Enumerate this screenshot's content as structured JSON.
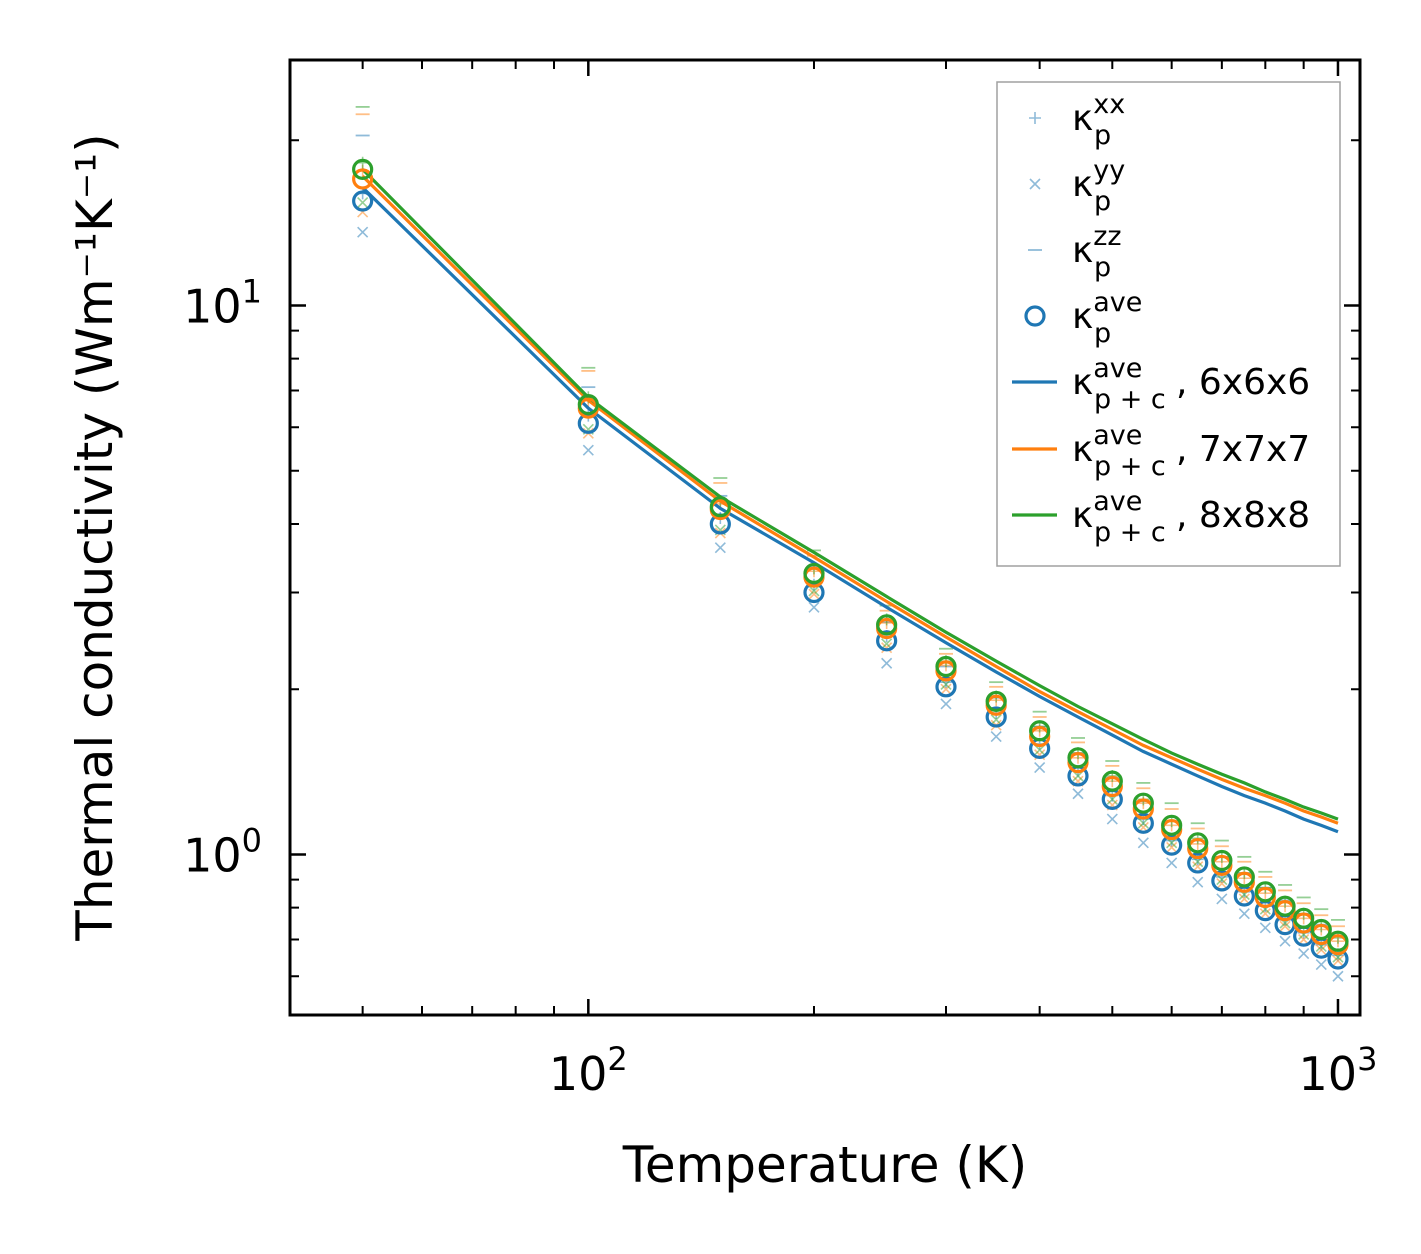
{
  "chart_data": {
    "type": "line",
    "title": "",
    "xlabel": "Temperature (K)",
    "ylabel": "Thermal conductivity (Wm⁻¹K⁻¹)",
    "xscale": "log",
    "yscale": "log",
    "xlim": [
      40,
      1070
    ],
    "ylim": [
      0.51,
      28
    ],
    "xticks": [
      {
        "base": "10",
        "exp": "2",
        "value": 100
      },
      {
        "base": "10",
        "exp": "3",
        "value": 1000
      }
    ],
    "yticks": [
      {
        "base": "10",
        "exp": "0",
        "value": 1
      },
      {
        "base": "10",
        "exp": "1",
        "value": 10
      }
    ],
    "legend_position": "top-right",
    "colors": {
      "blue": "#1f77b4",
      "orange": "#ff7f0e",
      "green": "#2ca02c",
      "frame": "#000000"
    },
    "legend": [
      {
        "name": "k_p_xx",
        "glyph": "κ",
        "sub": "p",
        "sup": "xx",
        "suffix": "",
        "marker": "plus",
        "color": "#1f77b4",
        "alpha": 0.5
      },
      {
        "name": "k_p_yy",
        "glyph": "κ",
        "sub": "p",
        "sup": "yy",
        "suffix": "",
        "marker": "x",
        "color": "#1f77b4",
        "alpha": 0.5
      },
      {
        "name": "k_p_zz",
        "glyph": "κ",
        "sub": "p",
        "sup": "zz",
        "suffix": "",
        "marker": "hline",
        "color": "#1f77b4",
        "alpha": 0.5
      },
      {
        "name": "k_p_ave",
        "glyph": "κ",
        "sub": "p",
        "sup": "ave",
        "suffix": "",
        "marker": "circle",
        "color": "#1f77b4",
        "alpha": 1
      },
      {
        "name": "k_pc_6x6x6",
        "glyph": "κ",
        "sub": "p + c",
        "sup": "ave",
        "suffix": ", 6x6x6",
        "marker": "line",
        "color": "#1f77b4",
        "alpha": 1
      },
      {
        "name": "k_pc_7x7x7",
        "glyph": "κ",
        "sub": "p + c",
        "sup": "ave",
        "suffix": ", 7x7x7",
        "marker": "line",
        "color": "#ff7f0e",
        "alpha": 1
      },
      {
        "name": "k_pc_8x8x8",
        "glyph": "κ",
        "sub": "p + c",
        "sup": "ave",
        "suffix": ", 8x8x8",
        "marker": "line",
        "color": "#2ca02c",
        "alpha": 1
      }
    ],
    "x": [
      50,
      100,
      150,
      200,
      250,
      300,
      350,
      400,
      450,
      500,
      550,
      600,
      650,
      700,
      750,
      800,
      850,
      900,
      950,
      1000
    ],
    "line_series": [
      {
        "name": "κ_p+c ave, 6x6x6",
        "color": "#1f77b4",
        "values": [
          16.4,
          6.5,
          4.27,
          3.4,
          2.82,
          2.43,
          2.15,
          1.94,
          1.78,
          1.65,
          1.54,
          1.46,
          1.39,
          1.33,
          1.28,
          1.24,
          1.2,
          1.16,
          1.13,
          1.1
        ]
      },
      {
        "name": "κ_p+c ave, 7x7x7",
        "color": "#ff7f0e",
        "values": [
          17.2,
          6.72,
          4.4,
          3.48,
          2.89,
          2.49,
          2.2,
          1.98,
          1.82,
          1.69,
          1.58,
          1.5,
          1.43,
          1.37,
          1.32,
          1.28,
          1.24,
          1.2,
          1.17,
          1.14
        ]
      },
      {
        "name": "κ_p+c ave, 8x8x8",
        "color": "#2ca02c",
        "values": [
          17.7,
          6.8,
          4.48,
          3.55,
          2.95,
          2.54,
          2.25,
          2.03,
          1.86,
          1.73,
          1.62,
          1.53,
          1.46,
          1.4,
          1.35,
          1.3,
          1.26,
          1.22,
          1.19,
          1.16
        ]
      }
    ],
    "point_series": [
      {
        "mesh": "6x6x6",
        "color": "#1f77b4",
        "ave": [
          15.5,
          6.1,
          4.0,
          3.0,
          2.45,
          2.02,
          1.78,
          1.56,
          1.39,
          1.26,
          1.14,
          1.04,
          0.965,
          0.895,
          0.84,
          0.79,
          0.745,
          0.71,
          0.675,
          0.645
        ],
        "xx": [
          16.0,
          6.3,
          4.1,
          3.1,
          2.5,
          2.06,
          1.81,
          1.59,
          1.42,
          1.28,
          1.16,
          1.06,
          0.98,
          0.91,
          0.855,
          0.805,
          0.76,
          0.72,
          0.685,
          0.655
        ],
        "yy": [
          13.6,
          5.45,
          3.62,
          2.82,
          2.23,
          1.88,
          1.64,
          1.44,
          1.29,
          1.16,
          1.05,
          0.965,
          0.89,
          0.83,
          0.78,
          0.735,
          0.695,
          0.66,
          0.63,
          0.6
        ],
        "zz": [
          20.4,
          7.1,
          4.5,
          3.35,
          2.65,
          2.2,
          1.93,
          1.71,
          1.53,
          1.38,
          1.25,
          1.15,
          1.06,
          0.99,
          0.925,
          0.87,
          0.825,
          0.78,
          0.745,
          0.71
        ]
      },
      {
        "mesh": "7x7x7",
        "color": "#ff7f0e",
        "ave": [
          17.0,
          6.5,
          4.25,
          3.2,
          2.58,
          2.16,
          1.87,
          1.64,
          1.47,
          1.33,
          1.21,
          1.11,
          1.025,
          0.955,
          0.89,
          0.835,
          0.79,
          0.75,
          0.715,
          0.685
        ],
        "xx": [
          17.6,
          6.7,
          4.35,
          3.28,
          2.64,
          2.21,
          1.91,
          1.68,
          1.5,
          1.36,
          1.24,
          1.13,
          1.045,
          0.97,
          0.905,
          0.85,
          0.805,
          0.765,
          0.73,
          0.695
        ],
        "yy": [
          14.8,
          5.85,
          3.85,
          2.98,
          2.38,
          2.0,
          1.72,
          1.52,
          1.36,
          1.23,
          1.12,
          1.03,
          0.95,
          0.885,
          0.83,
          0.78,
          0.74,
          0.7,
          0.67,
          0.64
        ],
        "zz": [
          22.3,
          7.6,
          4.75,
          3.5,
          2.78,
          2.32,
          2.02,
          1.78,
          1.6,
          1.45,
          1.32,
          1.21,
          1.115,
          1.035,
          0.97,
          0.91,
          0.86,
          0.815,
          0.775,
          0.74
        ]
      },
      {
        "mesh": "8x8x8",
        "color": "#2ca02c",
        "ave": [
          17.7,
          6.6,
          4.3,
          3.25,
          2.62,
          2.2,
          1.9,
          1.68,
          1.5,
          1.36,
          1.24,
          1.13,
          1.05,
          0.975,
          0.91,
          0.855,
          0.805,
          0.765,
          0.73,
          0.695
        ],
        "xx": [
          18.2,
          6.8,
          4.4,
          3.32,
          2.68,
          2.25,
          1.94,
          1.71,
          1.53,
          1.39,
          1.26,
          1.15,
          1.07,
          0.99,
          0.925,
          0.87,
          0.82,
          0.78,
          0.74,
          0.705
        ],
        "yy": [
          15.4,
          5.95,
          3.9,
          3.02,
          2.42,
          2.04,
          1.76,
          1.55,
          1.39,
          1.26,
          1.14,
          1.05,
          0.97,
          0.9,
          0.845,
          0.795,
          0.75,
          0.715,
          0.68,
          0.65
        ],
        "zz": [
          23.0,
          7.7,
          4.85,
          3.58,
          2.84,
          2.37,
          2.06,
          1.82,
          1.63,
          1.48,
          1.35,
          1.24,
          1.14,
          1.06,
          0.99,
          0.93,
          0.88,
          0.835,
          0.795,
          0.76
        ]
      }
    ]
  }
}
